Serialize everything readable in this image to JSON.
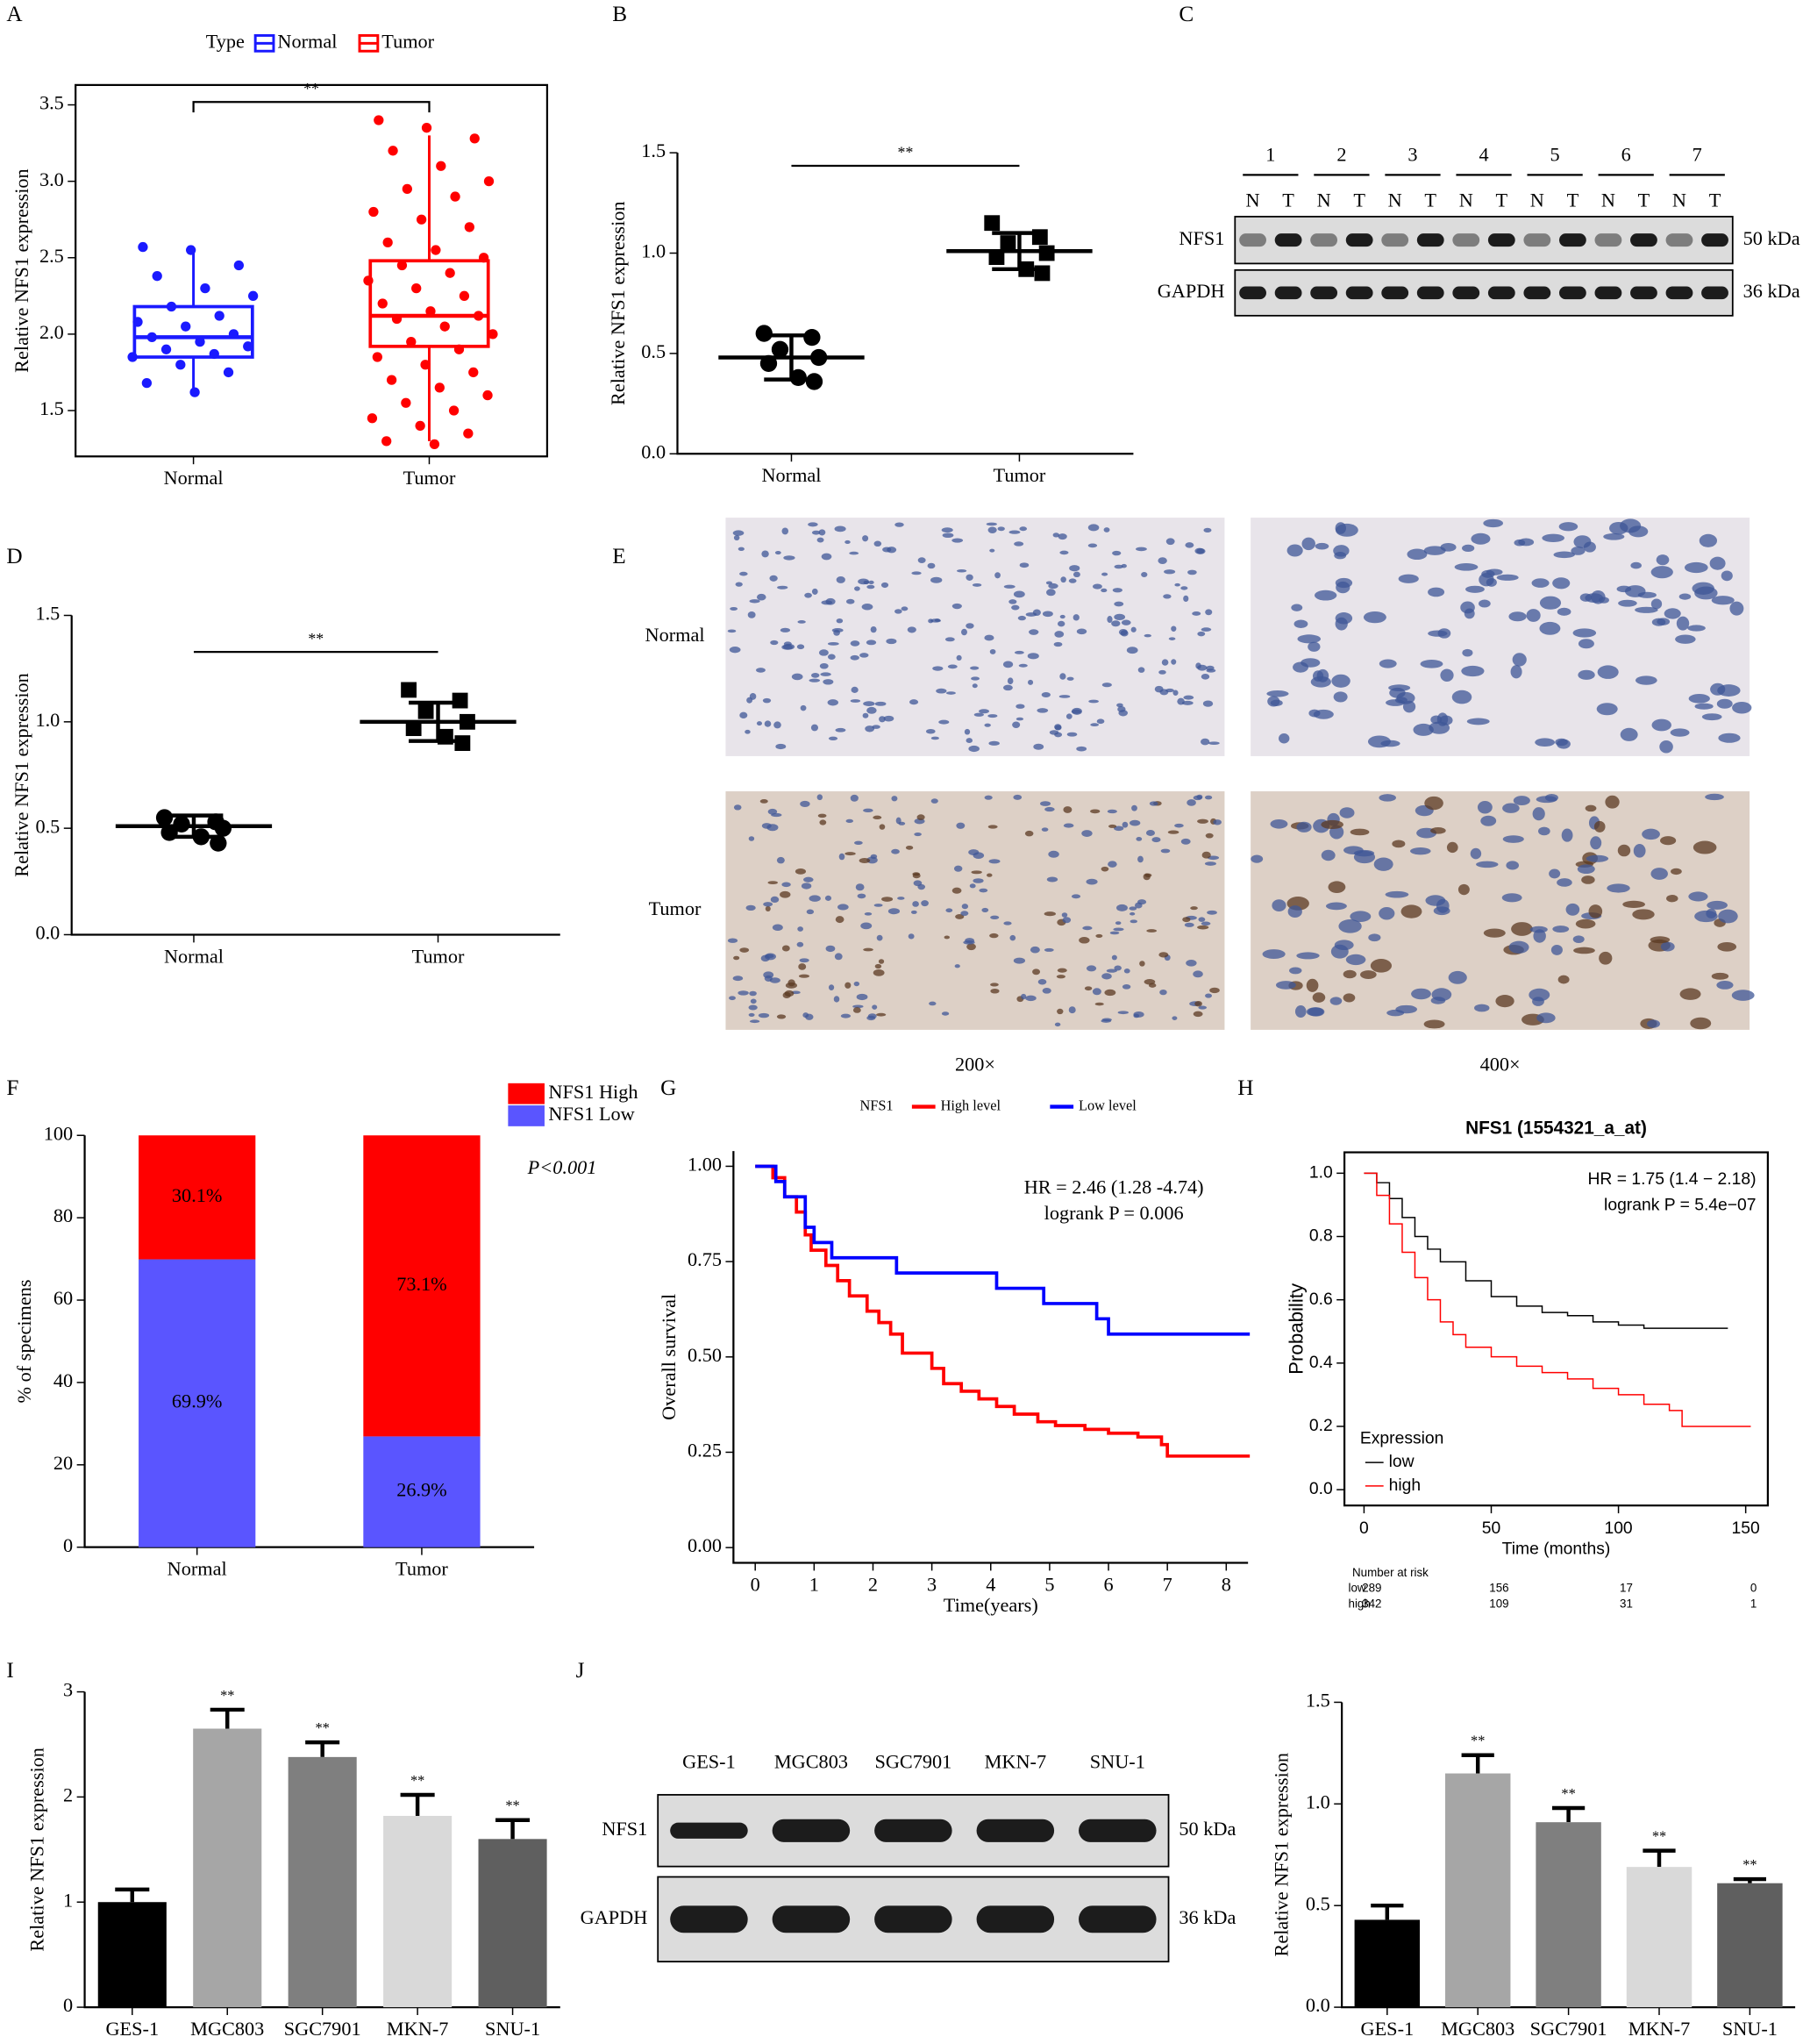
{
  "chart_data": [
    {
      "type": "box",
      "panel": "A",
      "legend_title": "Type",
      "categories": [
        "Normal",
        "Tumor"
      ],
      "ylabel": "Relative  NFS1 expression",
      "ylim": [
        1.2,
        3.63
      ],
      "yticks": [
        1.5,
        {
          "value": 2,
          "label": "2.0"
        },
        2.5,
        {
          "value": 3,
          "label": "3.0"
        },
        3.5
      ],
      "significance": "**",
      "series": [
        {
          "name": "Normal",
          "color": "#1a1aff",
          "q1": 1.85,
          "median": 1.98,
          "q3": 2.18,
          "whislo": 1.62,
          "whishi": 2.57,
          "points": [
            2.57,
            2.55,
            2.45,
            2.38,
            2.3,
            2.25,
            2.18,
            2.12,
            2.08,
            2.05,
            2.0,
            1.98,
            1.95,
            1.92,
            1.9,
            1.87,
            1.85,
            1.8,
            1.75,
            1.68,
            1.62
          ]
        },
        {
          "name": "Tumor",
          "color": "#ff0000",
          "q1": 1.92,
          "median": 2.12,
          "q3": 2.48,
          "whislo": 1.3,
          "whishi": 3.3,
          "points": [
            3.4,
            3.35,
            3.28,
            3.2,
            3.1,
            3.0,
            2.95,
            2.9,
            2.8,
            2.75,
            2.7,
            2.6,
            2.55,
            2.5,
            2.45,
            2.4,
            2.35,
            2.3,
            2.25,
            2.2,
            2.15,
            2.12,
            2.1,
            2.05,
            2.0,
            1.95,
            1.9,
            1.85,
            1.8,
            1.75,
            1.7,
            1.65,
            1.6,
            1.55,
            1.5,
            1.45,
            1.4,
            1.35,
            1.3,
            1.28
          ]
        }
      ]
    },
    {
      "type": "dot",
      "panel": "B",
      "categories": [
        "Normal",
        "Tumor"
      ],
      "ylabel": "Relative NFS1 expression",
      "ylim": [
        0,
        1.5
      ],
      "yticks": [
        {
          "value": 0,
          "label": "0.0"
        },
        0.5,
        {
          "value": 1,
          "label": "1.0"
        },
        1.5
      ],
      "significance": "**",
      "markers": [
        "circle",
        "square"
      ],
      "points": [
        [
          0.6,
          0.58,
          0.52,
          0.48,
          0.45,
          0.38,
          0.36
        ],
        [
          1.15,
          1.08,
          1.05,
          1.0,
          0.98,
          0.92,
          0.9
        ]
      ],
      "mean": [
        0.48,
        1.01
      ],
      "sd": [
        0.11,
        0.09
      ]
    },
    {
      "type": "blot",
      "panel": "C",
      "lanes": [
        "1",
        "2",
        "3",
        "4",
        "5",
        "6",
        "7"
      ],
      "sublanes": [
        "N",
        "T"
      ],
      "rows": [
        {
          "name": "NFS1",
          "size": "50 kDa"
        },
        {
          "name": "GAPDH",
          "size": "36 kDa"
        }
      ]
    },
    {
      "type": "dot",
      "panel": "D",
      "categories": [
        "Normal",
        "Tumor"
      ],
      "ylabel": "Relative NFS1 expression",
      "ylim": [
        0,
        1.5
      ],
      "yticks": [
        {
          "value": 0,
          "label": "0.0"
        },
        0.5,
        {
          "value": 1,
          "label": "1.0"
        },
        1.5
      ],
      "significance": "**",
      "markers": [
        "circle",
        "square"
      ],
      "points": [
        [
          0.55,
          0.53,
          0.52,
          0.5,
          0.48,
          0.46,
          0.43
        ],
        [
          1.15,
          1.1,
          1.05,
          1.0,
          0.97,
          0.93,
          0.9
        ]
      ],
      "mean": [
        0.51,
        1.0
      ],
      "sd": [
        0.05,
        0.09
      ]
    },
    {
      "type": "micrograph",
      "panel": "E",
      "rows": [
        "Normal",
        "Tumor"
      ],
      "columns": [
        "200×",
        "400×"
      ]
    },
    {
      "type": "stacked",
      "panel": "F",
      "categories": [
        "Normal",
        "Tumor"
      ],
      "ylabel": "% of specimens",
      "annotation": "P<0.001",
      "ylim": [
        0,
        100
      ],
      "yticks": [
        0,
        20,
        40,
        60,
        80,
        100
      ],
      "series": [
        {
          "name": "NFS1 High",
          "color": "#ff0000",
          "values": [
            30.1,
            73.1
          ],
          "value_labels": [
            "30.1%",
            "73.1%"
          ]
        },
        {
          "name": "NFS1 Low",
          "color": "#5a55ff",
          "values": [
            69.9,
            26.9
          ],
          "value_labels": [
            "69.9%",
            "26.9%"
          ]
        }
      ]
    },
    {
      "type": "km",
      "panel": "G",
      "legend_title": "NFS1",
      "xlabel": "Time(years)",
      "ylabel": "Overall survival",
      "annotations": [
        "HR = 2.46 (1.28 -4.74)",
        "logrank P = 0.006"
      ],
      "xlim": [
        -0.37,
        8.37
      ],
      "ylim": [
        -0.04,
        1.04
      ],
      "xticks": [
        0,
        1,
        2,
        3,
        4,
        5,
        6,
        7,
        8
      ],
      "yticks": [
        {
          "value": 0,
          "label": "0.00"
        },
        0.25,
        {
          "value": 0.5,
          "label": "0.50"
        },
        0.75,
        {
          "value": 1,
          "label": "1.00"
        }
      ],
      "series": [
        {
          "name": "High level",
          "color": "#ff0000",
          "x": [
            0,
            0.3,
            0.5,
            0.7,
            0.85,
            0.95,
            1.2,
            1.4,
            1.6,
            1.9,
            2.1,
            2.3,
            2.5,
            3.0,
            3.2,
            3.5,
            3.8,
            4.1,
            4.4,
            4.8,
            5.1,
            5.6,
            6.0,
            6.5,
            6.9,
            7.0,
            8.4
          ],
          "y": [
            1,
            0.97,
            0.92,
            0.88,
            0.82,
            0.78,
            0.74,
            0.7,
            0.66,
            0.62,
            0.59,
            0.56,
            0.51,
            0.47,
            0.43,
            0.41,
            0.39,
            0.37,
            0.35,
            0.33,
            0.32,
            0.31,
            0.3,
            0.29,
            0.27,
            0.24,
            0.24
          ]
        },
        {
          "name": "Low level",
          "color": "#0000ff",
          "x": [
            0,
            0.35,
            0.5,
            0.85,
            1.0,
            1.3,
            2.4,
            4.1,
            4.9,
            5.8,
            6.0,
            8.4
          ],
          "y": [
            1,
            0.96,
            0.92,
            0.84,
            0.8,
            0.76,
            0.72,
            0.68,
            0.64,
            0.6,
            0.56,
            0.56
          ]
        }
      ]
    },
    {
      "type": "km",
      "panel": "H",
      "title": "NFS1 (1554321_a_at)",
      "legend_title": "Expression",
      "xlabel": "Time (months)",
      "ylabel": "Probability",
      "annotations": [
        "HR = 1.75 (1.4 − 2.18)",
        "logrank P = 5.4e−07"
      ],
      "frame": true,
      "xlim": [
        -7.7,
        158.7
      ],
      "ylim": [
        -0.05,
        1.066
      ],
      "xticks": [
        0,
        50,
        100,
        150
      ],
      "yticks": [
        {
          "value": 0,
          "label": "0.0"
        },
        0.2,
        0.4,
        0.6,
        0.8,
        {
          "value": 1,
          "label": "1.0"
        }
      ],
      "series": [
        {
          "name": "low",
          "color": "#000000",
          "x": [
            0,
            5,
            10,
            15,
            20,
            25,
            30,
            40,
            50,
            60,
            70,
            80,
            90,
            100,
            110,
            143
          ],
          "y": [
            1,
            0.97,
            0.92,
            0.86,
            0.8,
            0.76,
            0.72,
            0.66,
            0.61,
            0.58,
            0.56,
            0.55,
            0.53,
            0.52,
            0.51,
            0.51
          ]
        },
        {
          "name": "high",
          "color": "#ff0000",
          "x": [
            0,
            5,
            10,
            15,
            20,
            25,
            30,
            35,
            40,
            50,
            60,
            70,
            80,
            90,
            100,
            110,
            120,
            125,
            152
          ],
          "y": [
            1,
            0.93,
            0.84,
            0.75,
            0.67,
            0.6,
            0.53,
            0.49,
            0.45,
            0.42,
            0.39,
            0.37,
            0.35,
            0.32,
            0.3,
            0.27,
            0.25,
            0.2,
            0.2
          ]
        }
      ],
      "risk_table": {
        "title": "Number at risk",
        "rows": [
          {
            "name": "low",
            "color": "#000000",
            "values": [
              289,
              156,
              17,
              0
            ]
          },
          {
            "name": "high",
            "color": "#ff0000",
            "values": [
              342,
              109,
              31,
              1
            ]
          }
        ]
      }
    },
    {
      "type": "bar",
      "panel": "I",
      "categories": [
        "GES-1",
        "MGC803",
        "SGC7901",
        "MKN-7",
        "SNU-1"
      ],
      "ylabel": "Relative NFS1 expression",
      "ylim": [
        0,
        3
      ],
      "yticks": [
        0,
        1,
        2,
        3
      ],
      "values": [
        1.0,
        2.65,
        2.38,
        1.82,
        1.6
      ],
      "errors": [
        0.12,
        0.18,
        0.14,
        0.2,
        0.18
      ],
      "colors": [
        "#000000",
        "#a6a6a6",
        "#7f7f7f",
        "#d9d9d9",
        "#5f5f5f"
      ],
      "significance": [
        null,
        "**",
        "**",
        "**",
        "**"
      ]
    },
    {
      "type": "blot",
      "panel": "J",
      "lanes": [
        "GES-1",
        "MGC803",
        "SGC7901",
        "MKN-7",
        "SNU-1"
      ],
      "rows": [
        {
          "name": "NFS1",
          "size": "50 kDa"
        },
        {
          "name": "GAPDH",
          "size": "36 kDa"
        }
      ]
    },
    {
      "type": "bar",
      "categories": [
        "GES-1",
        "MGC803",
        "SGC7901",
        "MKN-7",
        "SNU-1"
      ],
      "ylabel": "Relative NFS1 expression",
      "ylim": [
        0,
        1.5
      ],
      "yticks": [
        {
          "value": 0,
          "label": "0.0"
        },
        0.5,
        {
          "value": 1,
          "label": "1.0"
        },
        1.5
      ],
      "values": [
        0.43,
        1.15,
        0.91,
        0.69,
        0.61
      ],
      "errors": [
        0.07,
        0.09,
        0.07,
        0.08,
        0.02
      ],
      "colors": [
        "#000000",
        "#a6a6a6",
        "#7f7f7f",
        "#d9d9d9",
        "#5f5f5f"
      ],
      "significance": [
        null,
        "**",
        "**",
        "**",
        "**"
      ]
    }
  ]
}
